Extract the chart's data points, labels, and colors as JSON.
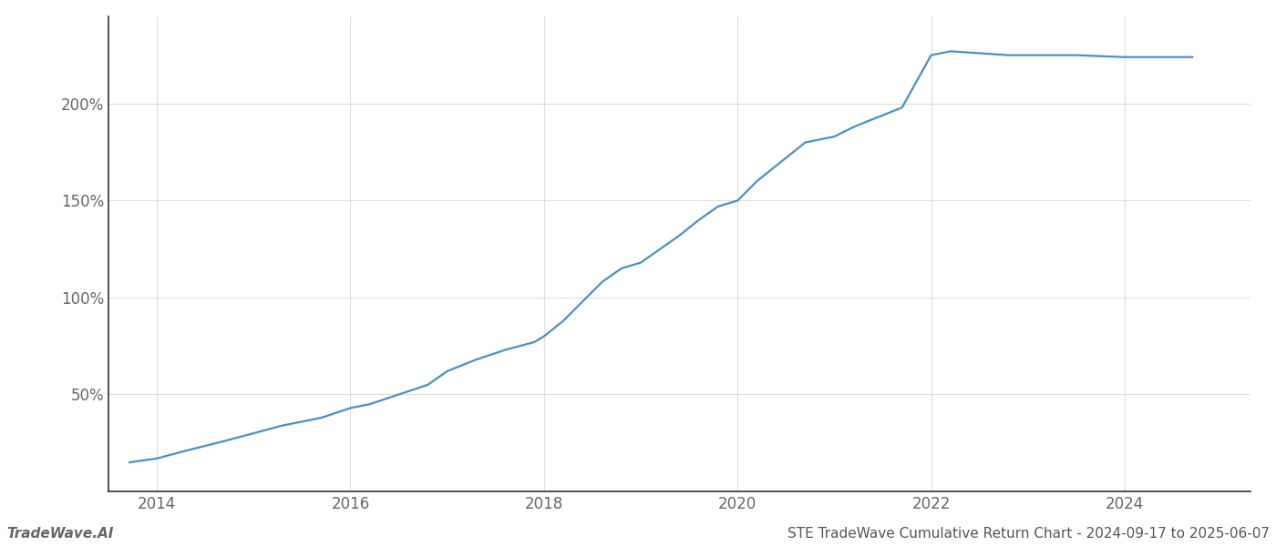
{
  "title": "STE TradeWave Cumulative Return Chart - 2024-09-17 to 2025-06-07",
  "watermark": "TradeWave.AI",
  "line_color": "#4a90c4",
  "line_width": 1.6,
  "background_color": "#ffffff",
  "grid_color": "#d0d0d0",
  "x_years": [
    2013.72,
    2014.0,
    2014.3,
    2014.7,
    2015.0,
    2015.3,
    2015.7,
    2016.0,
    2016.2,
    2016.5,
    2016.8,
    2017.0,
    2017.3,
    2017.6,
    2017.9,
    2018.0,
    2018.2,
    2018.4,
    2018.6,
    2018.8,
    2019.0,
    2019.2,
    2019.4,
    2019.6,
    2019.8,
    2020.0,
    2020.2,
    2020.5,
    2020.7,
    2021.0,
    2021.2,
    2021.5,
    2021.7,
    2022.0,
    2022.2,
    2022.5,
    2022.8,
    2023.0,
    2023.5,
    2024.0,
    2024.7
  ],
  "y_values": [
    15,
    17,
    21,
    26,
    30,
    34,
    38,
    43,
    45,
    50,
    55,
    62,
    68,
    73,
    77,
    80,
    88,
    98,
    108,
    115,
    118,
    125,
    132,
    140,
    147,
    150,
    160,
    172,
    180,
    183,
    188,
    194,
    198,
    225,
    227,
    226,
    225,
    225,
    225,
    224,
    224
  ],
  "yticks": [
    50,
    100,
    150,
    200
  ],
  "ylim": [
    0,
    245
  ],
  "xlim": [
    2013.5,
    2025.3
  ],
  "xticks": [
    2014,
    2016,
    2018,
    2020,
    2022,
    2024
  ],
  "tick_color": "#666666",
  "spine_color": "#333333",
  "grid_alpha": 0.7,
  "title_color": "#555555",
  "title_fontsize": 11,
  "watermark_fontsize": 11,
  "tick_fontsize": 12
}
